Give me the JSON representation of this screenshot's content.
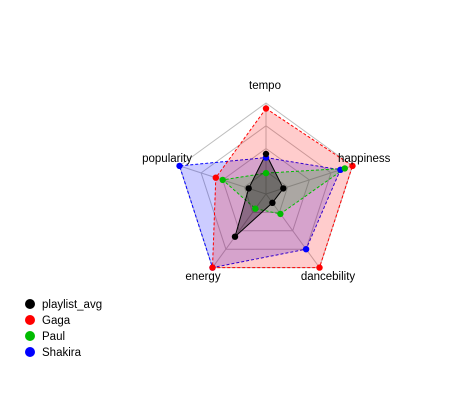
{
  "chart_data": {
    "type": "radar",
    "axes": [
      "tempo",
      "happiness",
      "dancebility",
      "energy",
      "popularity"
    ],
    "range": [
      0,
      1
    ],
    "grid_levels": 4,
    "series": [
      {
        "name": "playlist_avg",
        "color": "#000000",
        "fill": "#000000",
        "fill_opacity": 0.35,
        "values": [
          0.44,
          0.2,
          0.12,
          0.58,
          0.2
        ]
      },
      {
        "name": "Gaga",
        "color": "#ff0000",
        "fill": "#ff0000",
        "fill_opacity": 0.2,
        "values": [
          0.94,
          1.0,
          1.0,
          1.0,
          0.58
        ]
      },
      {
        "name": "Paul",
        "color": "#00bb00",
        "fill": "#00bb00",
        "fill_opacity": 0.2,
        "values": [
          0.23,
          0.91,
          0.27,
          0.2,
          0.5
        ]
      },
      {
        "name": "Shakira",
        "color": "#0000ff",
        "fill": "#0000ff",
        "fill_opacity": 0.2,
        "values": [
          0.4,
          0.86,
          0.75,
          1.0,
          1.0
        ]
      }
    ],
    "legend_position": "bottom-left"
  }
}
